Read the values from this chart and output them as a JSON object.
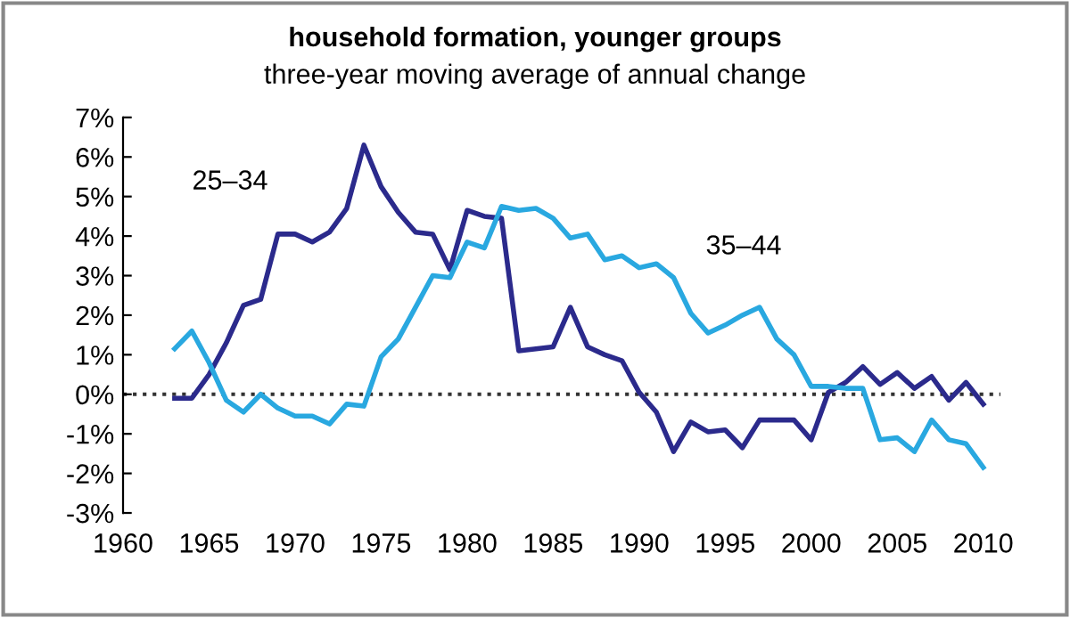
{
  "chart_data": {
    "type": "line",
    "title": "household formation, younger groups",
    "subtitle": "three-year moving average of annual change",
    "x": [
      1963,
      1964,
      1965,
      1966,
      1967,
      1968,
      1969,
      1970,
      1971,
      1972,
      1973,
      1974,
      1975,
      1976,
      1977,
      1978,
      1979,
      1980,
      1981,
      1982,
      1983,
      1984,
      1985,
      1986,
      1987,
      1988,
      1989,
      1990,
      1991,
      1992,
      1993,
      1994,
      1995,
      1996,
      1997,
      1998,
      1999,
      2000,
      2001,
      2002,
      2003,
      2004,
      2005,
      2006,
      2007,
      2008,
      2009,
      2010
    ],
    "series": [
      {
        "name": "25–34",
        "color": "#2b2a8c",
        "values": [
          -0.1,
          -0.1,
          0.5,
          1.3,
          2.25,
          2.4,
          4.05,
          4.05,
          3.85,
          4.1,
          4.7,
          6.3,
          5.25,
          4.6,
          4.1,
          4.05,
          3.15,
          4.65,
          4.5,
          4.45,
          1.1,
          1.15,
          1.2,
          2.2,
          1.2,
          1.0,
          0.85,
          0.05,
          -0.45,
          -1.45,
          -0.7,
          -0.95,
          -0.9,
          -1.35,
          -0.65,
          -0.65,
          -0.65,
          -1.15,
          0.05,
          0.3,
          0.7,
          0.25,
          0.55,
          0.15,
          0.45,
          -0.15,
          0.3,
          -0.25
        ]
      },
      {
        "name": "35–44",
        "color": "#29a8e0",
        "values": [
          1.15,
          1.6,
          0.8,
          -0.15,
          -0.45,
          0,
          -0.35,
          -0.55,
          -0.55,
          -0.75,
          -0.25,
          -0.3,
          0.95,
          1.4,
          2.2,
          3.0,
          2.95,
          3.85,
          3.7,
          4.75,
          4.65,
          4.7,
          4.45,
          3.95,
          4.05,
          3.4,
          3.5,
          3.2,
          3.3,
          2.95,
          2.05,
          1.55,
          1.75,
          2.0,
          2.2,
          1.4,
          1.0,
          0.2,
          0.2,
          0.15,
          0.15,
          -1.15,
          -1.1,
          -1.45,
          -0.65,
          -1.15,
          -1.25,
          -1.85
        ]
      }
    ],
    "xlim": [
      1960,
      2011
    ],
    "xticks": [
      1960,
      1965,
      1970,
      1975,
      1980,
      1985,
      1990,
      1995,
      2000,
      2005,
      2010
    ],
    "ylim": [
      -3,
      7
    ],
    "yticks": [
      {
        "value": -3,
        "label": "-3%"
      },
      {
        "value": -2,
        "label": "-2%"
      },
      {
        "value": -1,
        "label": "-1%"
      },
      {
        "value": 0,
        "label": "0%"
      },
      {
        "value": 1,
        "label": "1%"
      },
      {
        "value": 2,
        "label": "2%"
      },
      {
        "value": 3,
        "label": "3%"
      },
      {
        "value": 4,
        "label": "4%"
      },
      {
        "value": 5,
        "label": "5%"
      },
      {
        "value": 6,
        "label": "6%"
      },
      {
        "value": 7,
        "label": "7%"
      }
    ],
    "ref_lines": [
      {
        "axis": "y",
        "value": 0,
        "color": "#333333",
        "line_style": "dotted"
      }
    ],
    "grid": false,
    "legend": false
  }
}
